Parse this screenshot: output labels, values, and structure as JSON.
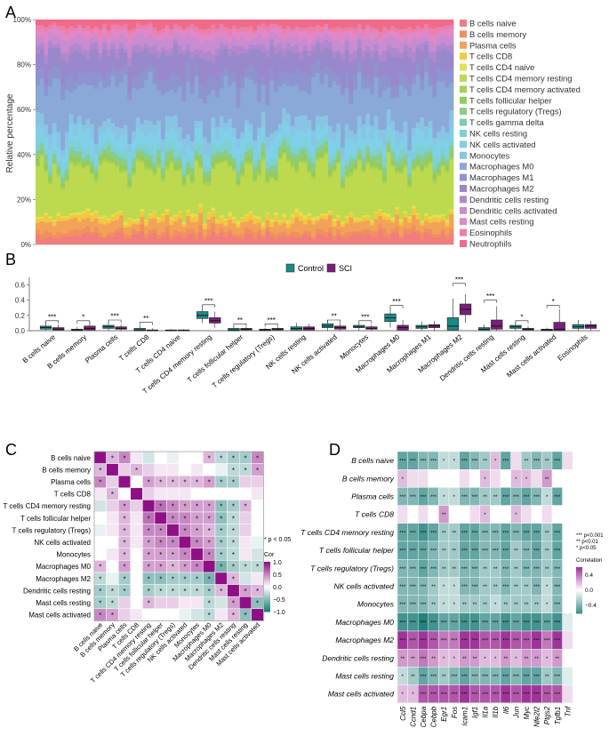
{
  "figure": {
    "panel_labels": [
      "A",
      "B",
      "C",
      "D"
    ]
  },
  "colors": {
    "control": "#1a8a85",
    "sci": "#7a1f7a",
    "cor_high": "#8e0f86",
    "cor_mid": "#ffffff",
    "cor_low": "#1f7f7a"
  },
  "chart_data": [
    {
      "panel": "A",
      "type": "bar",
      "subtype": "stacked-100",
      "ylabel": "Relative percentage",
      "yticks": [
        "0%",
        "20%",
        "40%",
        "60%",
        "80%",
        "100%"
      ],
      "ylim": [
        0,
        100
      ],
      "n_samples": 100,
      "legend_position": "right",
      "series": [
        {
          "name": "B cells naive",
          "mean": 4,
          "color": "#f07e7e"
        },
        {
          "name": "B cells memory",
          "mean": 2,
          "color": "#f0905c"
        },
        {
          "name": "Plasma cells",
          "mean": 4,
          "color": "#f3a25a"
        },
        {
          "name": "T cells CD8",
          "mean": 2,
          "color": "#f2c93e"
        },
        {
          "name": "T cells CD4 naive",
          "mean": 1,
          "color": "#e4e052"
        },
        {
          "name": "T cells CD4 memory resting",
          "mean": 20,
          "color": "#bcd94f"
        },
        {
          "name": "T cells CD4 memory activated",
          "mean": 1,
          "color": "#a5d253"
        },
        {
          "name": "T cells follicular helper",
          "mean": 2,
          "color": "#93cb5c"
        },
        {
          "name": "T cells regulatory (Tregs)",
          "mean": 2,
          "color": "#8fcb80"
        },
        {
          "name": "T cells gamma delta",
          "mean": 1,
          "color": "#7fcbaa"
        },
        {
          "name": "NK cells resting",
          "mean": 3,
          "color": "#7fd1d0"
        },
        {
          "name": "NK cells activated",
          "mean": 6,
          "color": "#7fd0e8"
        },
        {
          "name": "Monocytes",
          "mean": 5,
          "color": "#8ac4e4"
        },
        {
          "name": "Macrophages M0",
          "mean": 17,
          "color": "#8aa8d8"
        },
        {
          "name": "Macrophages M1",
          "mean": 6,
          "color": "#8d94d0"
        },
        {
          "name": "Macrophages M2",
          "mean": 9,
          "color": "#9a88cc"
        },
        {
          "name": "Dendritic cells resting",
          "mean": 3,
          "color": "#b088cf"
        },
        {
          "name": "Dendritic cells activated",
          "mean": 4,
          "color": "#c98cd0"
        },
        {
          "name": "Mast cells resting",
          "mean": 3,
          "color": "#e088c8"
        },
        {
          "name": "Eosinophils",
          "mean": 2,
          "color": "#ec80a8"
        },
        {
          "name": "Neutrophils",
          "mean": 3,
          "color": "#f06a8a"
        }
      ]
    },
    {
      "panel": "B",
      "type": "box",
      "ylim": [
        0,
        0.7
      ],
      "yticks": [
        "0.0",
        "0.2",
        "0.4",
        "0.6"
      ],
      "legend": [
        "Control",
        "SCI"
      ],
      "legend_position": "top",
      "categories": [
        "B cells naive",
        "B cells memory",
        "Plasma cells",
        "T cells CD8",
        "T cells CD4 naive",
        "T cells CD4 memory resting",
        "T cells follicular helper",
        "T cells regulatory (Tregs)",
        "NK cells resting",
        "NK cells activated",
        "Monocytes",
        "Macrophages M0",
        "Macrophages M1",
        "Macrophages M2",
        "Dendritic cells resting",
        "Mast cells resting",
        "Mast cells activated",
        "Eosinophils"
      ],
      "control": [
        [
          0.0,
          0.02,
          0.04,
          0.06,
          0.12
        ],
        [
          0.0,
          0.0,
          0.01,
          0.02,
          0.05
        ],
        [
          0.0,
          0.03,
          0.05,
          0.07,
          0.12
        ],
        [
          0.0,
          0.0,
          0.01,
          0.03,
          0.07
        ],
        [
          0.0,
          0.0,
          0.0,
          0.01,
          0.02
        ],
        [
          0.1,
          0.16,
          0.2,
          0.25,
          0.32
        ],
        [
          0.0,
          0.0,
          0.01,
          0.03,
          0.06
        ],
        [
          0.0,
          0.0,
          0.01,
          0.02,
          0.04
        ],
        [
          0.0,
          0.01,
          0.03,
          0.05,
          0.1
        ],
        [
          0.0,
          0.04,
          0.06,
          0.09,
          0.14
        ],
        [
          0.0,
          0.04,
          0.05,
          0.07,
          0.11
        ],
        [
          0.04,
          0.12,
          0.17,
          0.22,
          0.3
        ],
        [
          0.0,
          0.03,
          0.05,
          0.07,
          0.12
        ],
        [
          0.0,
          0.01,
          0.06,
          0.17,
          0.42
        ],
        [
          0.0,
          0.01,
          0.02,
          0.04,
          0.08
        ],
        [
          0.0,
          0.03,
          0.05,
          0.07,
          0.12
        ],
        [
          0.0,
          0.0,
          0.01,
          0.02,
          0.04
        ],
        [
          0.0,
          0.03,
          0.05,
          0.08,
          0.14
        ]
      ],
      "sci": [
        [
          0.0,
          0.01,
          0.02,
          0.04,
          0.08
        ],
        [
          0.0,
          0.01,
          0.03,
          0.06,
          0.12
        ],
        [
          0.0,
          0.02,
          0.03,
          0.05,
          0.08
        ],
        [
          0.0,
          0.0,
          0.0,
          0.01,
          0.03
        ],
        [
          0.0,
          0.0,
          0.0,
          0.01,
          0.02
        ],
        [
          0.04,
          0.1,
          0.13,
          0.17,
          0.25
        ],
        [
          0.0,
          0.01,
          0.02,
          0.03,
          0.05
        ],
        [
          0.0,
          0.01,
          0.02,
          0.03,
          0.05
        ],
        [
          0.0,
          0.01,
          0.03,
          0.05,
          0.09
        ],
        [
          0.0,
          0.02,
          0.04,
          0.06,
          0.1
        ],
        [
          0.0,
          0.02,
          0.03,
          0.05,
          0.08
        ],
        [
          0.0,
          0.01,
          0.04,
          0.07,
          0.14
        ],
        [
          0.0,
          0.04,
          0.06,
          0.08,
          0.13
        ],
        [
          0.1,
          0.21,
          0.28,
          0.35,
          0.48
        ],
        [
          0.0,
          0.02,
          0.06,
          0.14,
          0.32
        ],
        [
          0.0,
          0.01,
          0.02,
          0.03,
          0.06
        ],
        [
          0.0,
          0.0,
          0.02,
          0.11,
          0.28
        ],
        [
          0.0,
          0.03,
          0.06,
          0.08,
          0.13
        ]
      ],
      "significance": [
        {
          "category": "B cells naive",
          "label": "***",
          "y": 0.13
        },
        {
          "category": "B cells memory",
          "label": "*",
          "y": 0.13
        },
        {
          "category": "Plasma cells",
          "label": "***",
          "y": 0.14
        },
        {
          "category": "T cells CD8",
          "label": "**",
          "y": 0.11
        },
        {
          "category": "T cells CD4 memory resting",
          "label": "***",
          "y": 0.34
        },
        {
          "category": "T cells follicular helper",
          "label": "**",
          "y": 0.09
        },
        {
          "category": "T cells regulatory (Tregs)",
          "label": "***",
          "y": 0.09
        },
        {
          "category": "NK cells activated",
          "label": "**",
          "y": 0.14
        },
        {
          "category": "Monocytes",
          "label": "***",
          "y": 0.13
        },
        {
          "category": "Macrophages M0",
          "label": "***",
          "y": 0.33
        },
        {
          "category": "Macrophages M2",
          "label": "***",
          "y": 0.62
        },
        {
          "category": "Dendritic cells resting",
          "label": "***",
          "y": 0.4
        },
        {
          "category": "Mast cells resting",
          "label": "*",
          "y": 0.13
        },
        {
          "category": "Mast cells activated",
          "label": "*",
          "y": 0.33
        }
      ]
    },
    {
      "panel": "C",
      "type": "heatmap",
      "subtype": "correlation-lower-upper",
      "labels": [
        "B cells naive",
        "B cells memory",
        "Plasma cells",
        "T cells CD8",
        "T cells CD4 memory resting",
        "T cells follicular helper",
        "T cells regulatory (Tregs)",
        "NK cells activated",
        "Monocytes",
        "Macrophages M0",
        "Macrophages M2",
        "Dendritic cells resting",
        "Mast cells resting",
        "Mast cells activated"
      ],
      "values": [
        [
          1.0,
          0.3,
          0.5,
          0.1,
          -0.2,
          0.0,
          -0.1,
          0.0,
          0.0,
          0.3,
          -0.3,
          -0.4,
          -0.4,
          0.5
        ],
        [
          0.3,
          1.0,
          0.2,
          0.3,
          0.2,
          0.1,
          0.1,
          0.0,
          0.1,
          0.0,
          -0.1,
          -0.3,
          -0.3,
          0.4
        ],
        [
          0.5,
          0.2,
          1.0,
          0.0,
          0.4,
          0.3,
          0.3,
          0.3,
          0.3,
          0.4,
          -0.4,
          -0.4,
          0.2,
          0.2
        ],
        [
          0.1,
          0.3,
          0.0,
          1.0,
          0.2,
          0.1,
          0.1,
          0.1,
          0.0,
          0.0,
          0.0,
          0.0,
          0.0,
          0.1
        ],
        [
          -0.2,
          0.2,
          0.4,
          0.2,
          1.0,
          0.6,
          0.5,
          0.4,
          0.4,
          0.4,
          -0.5,
          -0.4,
          0.3,
          0.0
        ],
        [
          0.0,
          0.1,
          0.3,
          0.1,
          0.6,
          1.0,
          0.5,
          0.5,
          0.4,
          0.4,
          -0.5,
          -0.3,
          0.2,
          0.0
        ],
        [
          -0.1,
          0.1,
          0.3,
          0.1,
          0.5,
          0.5,
          1.0,
          0.5,
          0.4,
          0.3,
          -0.4,
          -0.3,
          0.2,
          0.0
        ],
        [
          0.0,
          0.0,
          0.3,
          0.1,
          0.4,
          0.5,
          0.5,
          1.0,
          0.5,
          0.4,
          -0.4,
          -0.3,
          0.1,
          -0.1
        ],
        [
          0.0,
          0.1,
          0.3,
          0.0,
          0.4,
          0.4,
          0.4,
          0.5,
          1.0,
          0.5,
          -0.4,
          -0.3,
          0.1,
          -0.2
        ],
        [
          0.3,
          0.0,
          0.4,
          0.0,
          0.4,
          0.4,
          0.3,
          0.4,
          0.5,
          1.0,
          -0.6,
          -0.4,
          -0.3,
          -0.3
        ],
        [
          -0.3,
          -0.1,
          -0.4,
          0.0,
          -0.5,
          -0.5,
          -0.4,
          -0.4,
          -0.4,
          -0.6,
          1.0,
          0.3,
          -0.2,
          0.1
        ],
        [
          -0.4,
          -0.3,
          -0.4,
          0.0,
          -0.4,
          -0.3,
          -0.3,
          -0.3,
          -0.3,
          -0.4,
          0.3,
          1.0,
          0.4,
          0.3
        ],
        [
          -0.4,
          -0.3,
          0.2,
          0.0,
          0.3,
          0.2,
          0.2,
          0.1,
          0.1,
          -0.3,
          -0.2,
          0.4,
          1.0,
          -0.5
        ],
        [
          0.5,
          0.4,
          0.2,
          0.1,
          0.0,
          0.0,
          0.0,
          -0.1,
          -0.2,
          -0.3,
          0.1,
          0.3,
          -0.5,
          1.0
        ]
      ],
      "legend_title": "Cor",
      "legend_ticks": [
        "1.0",
        "0.5",
        "0.0",
        "−0.5",
        "−1.0"
      ],
      "note": "* p < 0.05"
    },
    {
      "panel": "D",
      "type": "heatmap",
      "subtype": "gene-cell-correlation",
      "rows": [
        "B cells naive",
        "B cells memory",
        "Plasma cells",
        "T cells CD8",
        "T cells CD4 memory resting",
        "T cells follicular helper",
        "T cells regulatory (Tregs)",
        "NK cells activated",
        "Monocytes",
        "Macrophages M0",
        "Macrophages M2",
        "Dendritic cells resting",
        "Mast cells resting",
        "Mast cells activated"
      ],
      "columns": [
        "Ccl5",
        "Ccnd1",
        "Cebpa",
        "Cebpb",
        "Egr1",
        "Fos",
        "Icam1",
        "Igf1",
        "Il1a",
        "Il1b",
        "Il6",
        "Jun",
        "Myc",
        "Nfe2l2",
        "Ptgs2",
        "Tgfb1",
        "Tnf"
      ],
      "values": [
        [
          -0.5,
          -0.5,
          -0.4,
          -0.4,
          -0.2,
          -0.2,
          -0.5,
          -0.4,
          -0.3,
          0.2,
          -0.5,
          0.1,
          -0.3,
          -0.4,
          -0.3,
          -0.5,
          0.1
        ],
        [
          0.2,
          0.1,
          0.1,
          0.0,
          0.0,
          0.0,
          0.1,
          0.0,
          0.2,
          0.1,
          0.0,
          0.2,
          0.2,
          0.1,
          0.3,
          0.0,
          0.0
        ],
        [
          -0.4,
          -0.4,
          -0.5,
          -0.4,
          -0.2,
          -0.2,
          -0.4,
          -0.4,
          -0.3,
          -0.3,
          -0.5,
          -0.4,
          -0.5,
          -0.4,
          -0.2,
          -0.5,
          0.0
        ],
        [
          0.1,
          0.0,
          0.1,
          0.0,
          0.3,
          0.0,
          0.0,
          0.1,
          0.2,
          0.0,
          0.0,
          0.2,
          0.1,
          0.0,
          0.1,
          0.0,
          0.0
        ],
        [
          -0.5,
          -0.5,
          -0.6,
          -0.5,
          -0.3,
          -0.3,
          -0.5,
          -0.5,
          -0.4,
          -0.4,
          -0.5,
          -0.4,
          -0.5,
          -0.5,
          -0.3,
          -0.5,
          0.0
        ],
        [
          -0.5,
          -0.5,
          -0.5,
          -0.4,
          -0.3,
          -0.3,
          -0.5,
          -0.5,
          -0.4,
          -0.4,
          -0.5,
          -0.3,
          -0.4,
          -0.5,
          -0.3,
          -0.5,
          0.0
        ],
        [
          -0.4,
          -0.4,
          -0.5,
          -0.4,
          -0.3,
          -0.3,
          -0.4,
          -0.4,
          -0.3,
          -0.3,
          -0.4,
          -0.3,
          -0.4,
          -0.4,
          -0.3,
          -0.4,
          0.0
        ],
        [
          -0.4,
          -0.4,
          -0.4,
          -0.3,
          -0.2,
          -0.2,
          -0.4,
          -0.4,
          -0.3,
          -0.3,
          -0.4,
          -0.3,
          -0.3,
          -0.4,
          -0.2,
          -0.4,
          0.0
        ],
        [
          -0.4,
          -0.4,
          -0.4,
          -0.3,
          -0.2,
          -0.2,
          -0.3,
          -0.3,
          -0.3,
          -0.2,
          -0.3,
          -0.3,
          -0.3,
          -0.3,
          -0.2,
          -0.4,
          0.0
        ],
        [
          -0.6,
          -0.6,
          -0.7,
          -0.6,
          -0.5,
          -0.5,
          -0.6,
          -0.6,
          -0.5,
          -0.5,
          -0.6,
          -0.5,
          -0.6,
          -0.6,
          -0.5,
          -0.6,
          -0.1
        ],
        [
          0.6,
          0.5,
          0.6,
          0.5,
          0.4,
          0.4,
          0.6,
          0.6,
          0.5,
          0.5,
          0.6,
          0.5,
          0.5,
          0.6,
          0.4,
          0.6,
          0.1
        ],
        [
          0.3,
          0.3,
          0.4,
          0.3,
          0.2,
          0.2,
          0.3,
          0.3,
          0.2,
          0.2,
          0.3,
          0.2,
          0.3,
          0.3,
          0.2,
          0.3,
          0.0
        ],
        [
          -0.2,
          -0.3,
          -0.5,
          -0.4,
          -0.3,
          -0.4,
          -0.5,
          -0.4,
          -0.4,
          -0.4,
          -0.5,
          -0.4,
          -0.5,
          -0.5,
          -0.3,
          -0.4,
          -0.1
        ],
        [
          0.2,
          0.2,
          0.5,
          0.5,
          0.5,
          0.5,
          0.6,
          0.5,
          0.5,
          0.5,
          0.6,
          0.5,
          0.6,
          0.6,
          0.5,
          0.5,
          0.1
        ]
      ],
      "legend_title": "Correlation",
      "legend_ticks": [
        "0.4",
        "0.0",
        "−0.4"
      ],
      "sig_notes": [
        "*** p<0.001",
        "** p<0.01",
        "* p<0.05"
      ]
    }
  ]
}
